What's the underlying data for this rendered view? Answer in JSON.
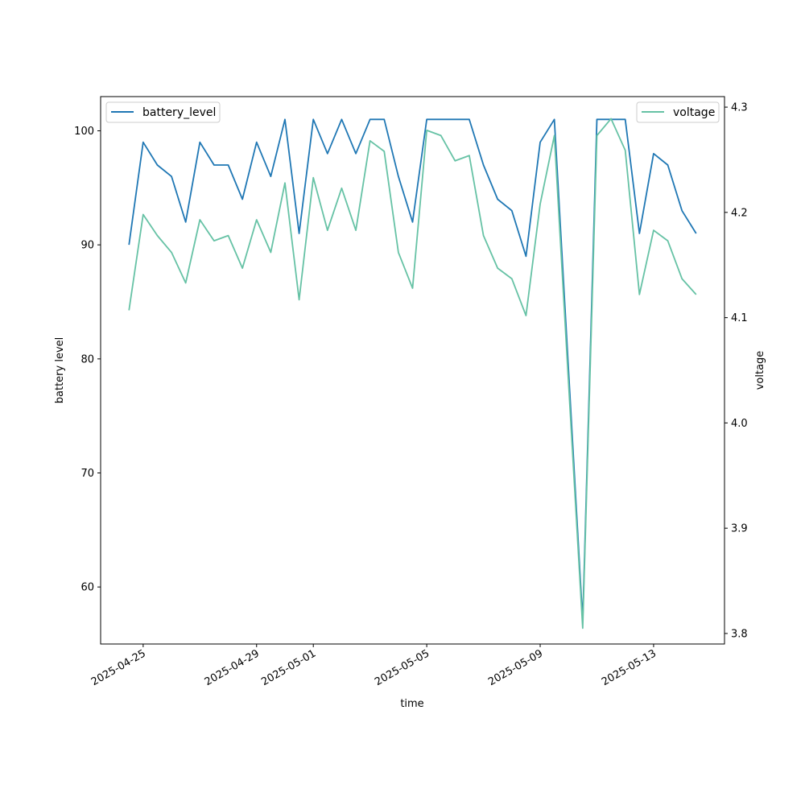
{
  "chart_data": {
    "type": "line",
    "xlabel": "time",
    "ylabel_left": "battery level",
    "ylabel_right": "voltage",
    "x_tick_labels": [
      "2025-04-25",
      "2025-04-29",
      "2025-05-01",
      "2025-05-05",
      "2025-05-09",
      "2025-05-13"
    ],
    "left_yticks": [
      60,
      70,
      80,
      90,
      100
    ],
    "right_yticks": [
      3.8,
      3.9,
      4.0,
      4.1,
      4.2,
      4.3
    ],
    "left_ylim": [
      55,
      103
    ],
    "right_ylim": [
      3.79,
      4.31
    ],
    "x": [
      "2025-04-24 12:00",
      "2025-04-25 00:00",
      "2025-04-25 12:00",
      "2025-04-26 00:00",
      "2025-04-26 12:00",
      "2025-04-27 00:00",
      "2025-04-27 12:00",
      "2025-04-28 00:00",
      "2025-04-28 12:00",
      "2025-04-29 00:00",
      "2025-04-29 12:00",
      "2025-04-30 00:00",
      "2025-04-30 12:00",
      "2025-05-01 00:00",
      "2025-05-01 12:00",
      "2025-05-02 00:00",
      "2025-05-02 12:00",
      "2025-05-03 00:00",
      "2025-05-03 12:00",
      "2025-05-04 00:00",
      "2025-05-04 12:00",
      "2025-05-05 00:00",
      "2025-05-05 12:00",
      "2025-05-06 00:00",
      "2025-05-06 12:00",
      "2025-05-07 00:00",
      "2025-05-07 12:00",
      "2025-05-08 00:00",
      "2025-05-08 12:00",
      "2025-05-09 00:00",
      "2025-05-09 12:00",
      "2025-05-10 00:00",
      "2025-05-10 12:00",
      "2025-05-11 00:00",
      "2025-05-11 12:00",
      "2025-05-12 00:00",
      "2025-05-12 12:00",
      "2025-05-13 00:00",
      "2025-05-13 12:00",
      "2025-05-14 00:00",
      "2025-05-14 12:00"
    ],
    "x_range": [
      "2025-04-23 12:00",
      "2025-05-15 12:00"
    ],
    "series": [
      {
        "name": "battery_level",
        "axis": "left",
        "color": "#1f77b4",
        "values": [
          90,
          99,
          97,
          96,
          92,
          99,
          97,
          97,
          94,
          99,
          96,
          101,
          91,
          101,
          98,
          101,
          98,
          101,
          101,
          96,
          92,
          101,
          101,
          101,
          101,
          97,
          94,
          93,
          89,
          99,
          101,
          79,
          57,
          101,
          101,
          101,
          91,
          98,
          97,
          93,
          91
        ]
      },
      {
        "name": "voltage",
        "axis": "right",
        "color": "#66c2a5",
        "values": [
          4.107,
          4.198,
          4.178,
          4.162,
          4.133,
          4.193,
          4.173,
          4.178,
          4.147,
          4.193,
          4.162,
          4.228,
          4.117,
          4.233,
          4.183,
          4.223,
          4.183,
          4.268,
          4.258,
          4.162,
          4.128,
          4.278,
          4.273,
          4.249,
          4.254,
          4.178,
          4.147,
          4.137,
          4.102,
          4.208,
          4.273,
          4.038,
          3.805,
          4.273,
          4.289,
          4.259,
          4.122,
          4.183,
          4.173,
          4.137,
          4.122
        ]
      }
    ],
    "legend_left_position": "upper left",
    "legend_right_position": "upper right",
    "grid": false
  }
}
